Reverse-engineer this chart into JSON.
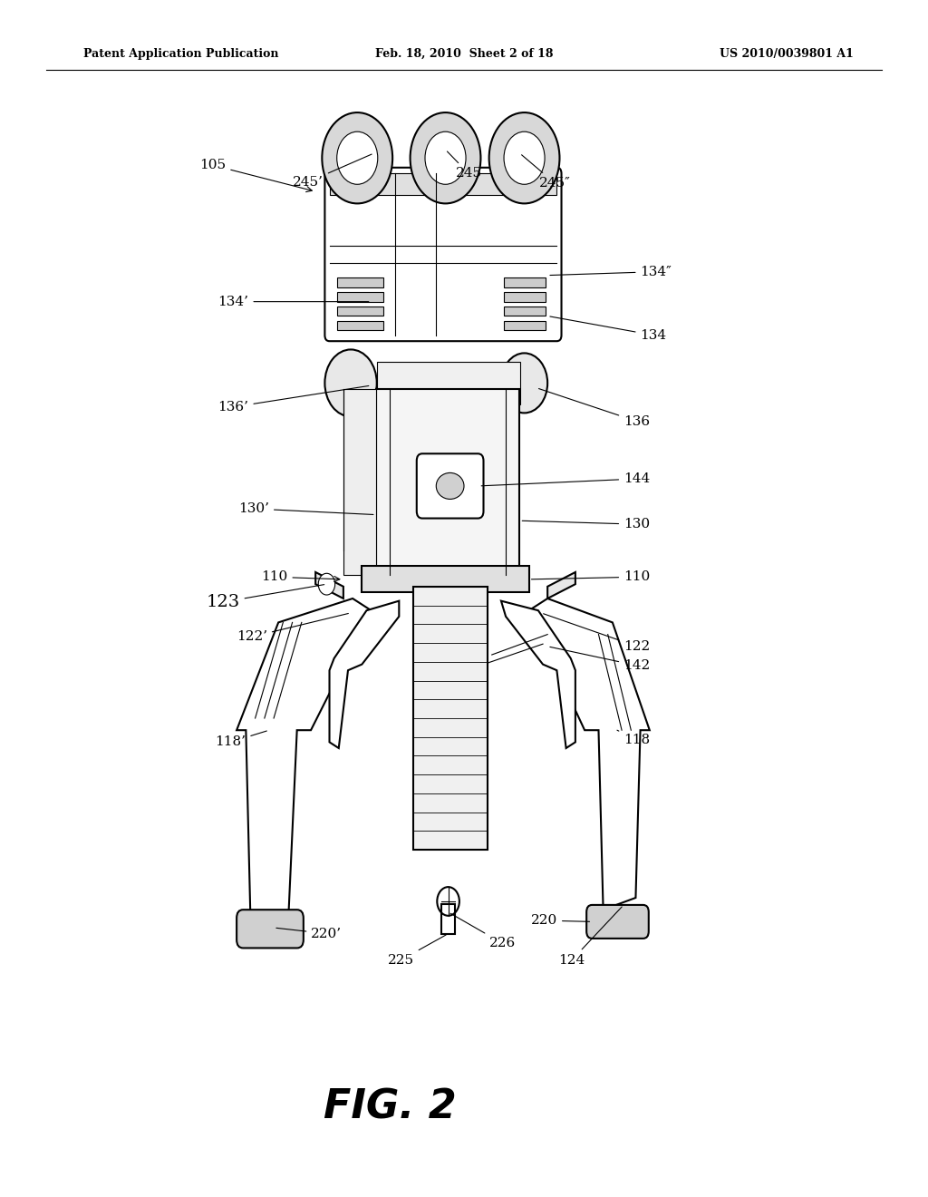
{
  "bg_color": "#ffffff",
  "line_color": "#000000",
  "header_left": "Patent Application Publication",
  "header_mid": "Feb. 18, 2010  Sheet 2 of 18",
  "header_right": "US 2010/0039801 A1",
  "fig_label": "FIG. 2"
}
